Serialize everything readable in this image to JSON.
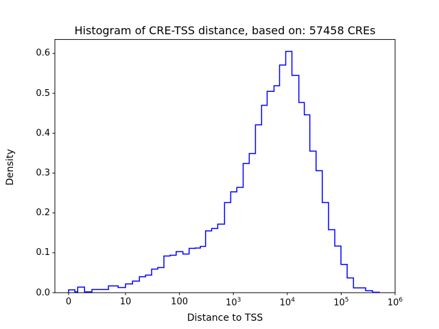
{
  "figure": {
    "title": "Histogram of CRE-TSS distance, based on: 57458 CREs",
    "xlabel": "Distance to TSS",
    "ylabel": "Density"
  },
  "chart_data": {
    "type": "step-histogram",
    "title": "Histogram of CRE-TSS distance, based on: 57458 CREs",
    "xlabel": "Distance to TSS",
    "ylabel": "Density",
    "n_samples_in_title": 57458,
    "x_scale": "symlog",
    "x_linthresh": 10,
    "xlim": [
      -2.4,
      1000000
    ],
    "ylim": [
      0,
      0.635
    ],
    "grid": false,
    "legend": "none",
    "line_color": "#0000ff",
    "axis_color": "#000000",
    "x_ticks": [
      {
        "value": 0,
        "label": "0"
      },
      {
        "value": 10,
        "label": "10"
      },
      {
        "value": 100,
        "label": "100"
      },
      {
        "value": 1000,
        "label": "10",
        "exp": "3"
      },
      {
        "value": 10000,
        "label": "10",
        "exp": "4"
      },
      {
        "value": 100000,
        "label": "10",
        "exp": "5"
      },
      {
        "value": 1000000,
        "label": "10",
        "exp": "6"
      }
    ],
    "y_ticks": [
      {
        "value": 0.0,
        "label": "0.0"
      },
      {
        "value": 0.1,
        "label": "0.1"
      },
      {
        "value": 0.2,
        "label": "0.2"
      },
      {
        "value": 0.3,
        "label": "0.3"
      },
      {
        "value": 0.4,
        "label": "0.4"
      },
      {
        "value": 0.5,
        "label": "0.5"
      },
      {
        "value": 0.6,
        "label": "0.6"
      }
    ],
    "bin_edges": [
      0,
      1.1,
      1.6,
      2.8,
      4.1,
      5.8,
      7.0,
      8.7,
      10,
      13.5,
      18.1,
      23.5,
      30.5,
      39.6,
      51.5,
      66.9,
      86.9,
      116,
      151,
      196,
      245,
      305,
      396,
      513,
      686,
      894,
      1160,
      1520,
      1970,
      2570,
      3340,
      4230,
      5680,
      7190,
      9360,
      12200,
      16400,
      20700,
      26200,
      34200,
      44600,
      58200,
      76000,
      99000,
      129000,
      169000,
      284000,
      381000,
      511000
    ],
    "densities": [
      0.007,
      0.002,
      0.014,
      0.002,
      0.008,
      0.008,
      0.017,
      0.013,
      0.022,
      0.029,
      0.04,
      0.044,
      0.059,
      0.063,
      0.092,
      0.094,
      0.103,
      0.097,
      0.111,
      0.112,
      0.116,
      0.155,
      0.161,
      0.172,
      0.226,
      0.253,
      0.264,
      0.324,
      0.349,
      0.421,
      0.47,
      0.505,
      0.519,
      0.571,
      0.605,
      0.545,
      0.477,
      0.446,
      0.355,
      0.306,
      0.226,
      0.158,
      0.117,
      0.071,
      0.037,
      0.012,
      0.005,
      0.001
    ]
  }
}
